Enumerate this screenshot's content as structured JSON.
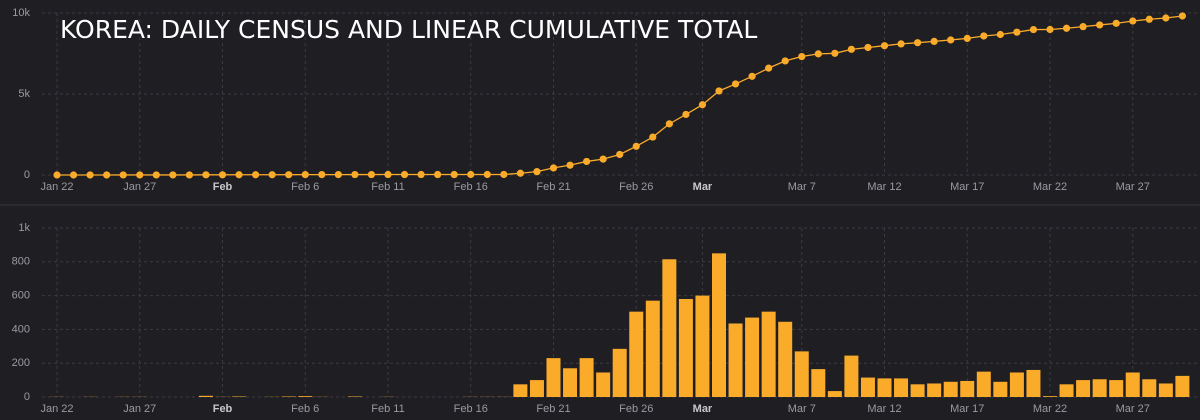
{
  "chart_data": [
    {
      "type": "line",
      "title": "KOREA: DAILY CENSUS AND LINEAR CUMULATIVE TOTAL",
      "categories": [
        "Jan 22",
        null,
        null,
        null,
        null,
        "Jan 27",
        null,
        null,
        null,
        null,
        "Feb",
        null,
        null,
        null,
        null,
        "Feb 6",
        null,
        null,
        null,
        null,
        "Feb 11",
        null,
        null,
        null,
        null,
        "Feb 16",
        null,
        null,
        null,
        null,
        "Feb 21",
        null,
        null,
        null,
        null,
        "Feb 26",
        null,
        null,
        null,
        "Mar",
        null,
        null,
        null,
        null,
        null,
        "Mar 7",
        null,
        null,
        null,
        null,
        "Mar 12",
        null,
        null,
        null,
        null,
        "Mar 17",
        null,
        null,
        null,
        null,
        "Mar 22",
        null,
        null,
        null,
        null,
        "Mar 27",
        null,
        null,
        null
      ],
      "values": [
        1,
        1,
        2,
        2,
        3,
        4,
        4,
        4,
        4,
        11,
        12,
        15,
        15,
        16,
        19,
        24,
        25,
        25,
        28,
        28,
        29,
        29,
        29,
        29,
        29,
        30,
        31,
        32,
        107,
        207,
        437,
        607,
        837,
        982,
        1267,
        1772,
        2342,
        3157,
        3737,
        4337,
        5187,
        5622,
        6092,
        6597,
        7042,
        7312,
        7477,
        7512,
        7757,
        7872,
        7982,
        8092,
        8167,
        8247,
        8337,
        8432,
        8582,
        8672,
        8817,
        8977,
        8982,
        9057,
        9157,
        9262,
        9362,
        9507,
        9612,
        9692,
        9817
      ],
      "color": "#fbab2a",
      "ylim": [
        0,
        10000
      ],
      "yticks": [
        0,
        {
          "value": 5000,
          "label": "5k"
        },
        {
          "value": 10000,
          "label": "10k"
        }
      ],
      "grid": true
    },
    {
      "type": "bar",
      "categories": [
        "Jan 22",
        null,
        null,
        null,
        null,
        "Jan 27",
        null,
        null,
        null,
        null,
        "Feb",
        null,
        null,
        null,
        null,
        "Feb 6",
        null,
        null,
        null,
        null,
        "Feb 11",
        null,
        null,
        null,
        null,
        "Feb 16",
        null,
        null,
        null,
        null,
        "Feb 21",
        null,
        null,
        null,
        null,
        "Feb 26",
        null,
        null,
        null,
        "Mar",
        null,
        null,
        null,
        null,
        null,
        "Mar 7",
        null,
        null,
        null,
        null,
        "Mar 12",
        null,
        null,
        null,
        null,
        "Mar 17",
        null,
        null,
        null,
        null,
        "Mar 22",
        null,
        null,
        null,
        null,
        "Mar 27",
        null,
        null,
        null
      ],
      "values": [
        1,
        0,
        1,
        0,
        1,
        1,
        0,
        0,
        0,
        7,
        1,
        3,
        0,
        1,
        3,
        5,
        1,
        0,
        3,
        0,
        1,
        0,
        0,
        0,
        0,
        1,
        1,
        1,
        75,
        100,
        230,
        170,
        230,
        145,
        285,
        505,
        570,
        815,
        580,
        600,
        850,
        435,
        470,
        505,
        445,
        270,
        165,
        35,
        245,
        115,
        110,
        110,
        75,
        80,
        90,
        95,
        150,
        90,
        145,
        160,
        5,
        75,
        100,
        105,
        100,
        145,
        105,
        80,
        125
      ],
      "color": "#fbab2a",
      "ylim": [
        0,
        1000
      ],
      "yticks": [
        0,
        200,
        400,
        600,
        800,
        {
          "value": 1000,
          "label": "1k"
        }
      ],
      "grid": true
    }
  ]
}
